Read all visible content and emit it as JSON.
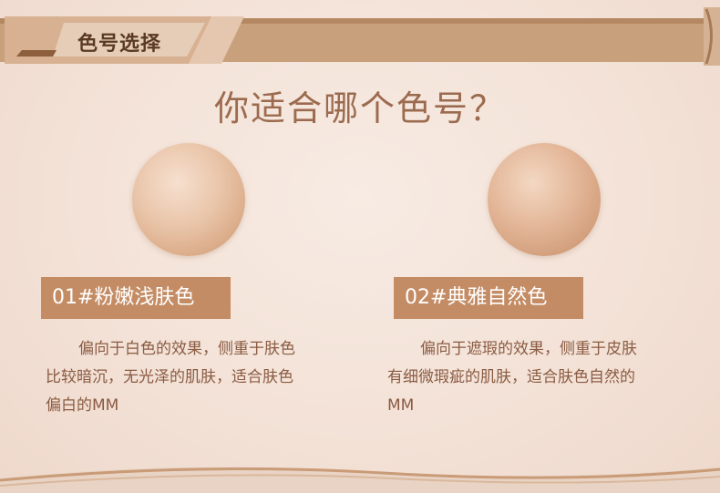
{
  "header": {
    "section_title": "色号选择"
  },
  "question": "你适合哪个色号？",
  "shades": [
    {
      "label": "01#粉嫩浅肤色",
      "lines": [
        "偏向于白色的效果，侧重于肤色",
        "比较暗沉，无光泽的肌肤，适合肤色",
        "偏白的MM"
      ]
    },
    {
      "label": "02#典雅自然色",
      "lines": [
        "偏向于遮瑕的效果，侧重于皮肤",
        "有细微瑕疵的肌肤，适合肤色自然的",
        "MM"
      ]
    }
  ],
  "colors": {
    "accent": "#c48c64",
    "header_band": "#c9a07c",
    "text": "#8a5b42",
    "title": "#9c6b4f"
  }
}
